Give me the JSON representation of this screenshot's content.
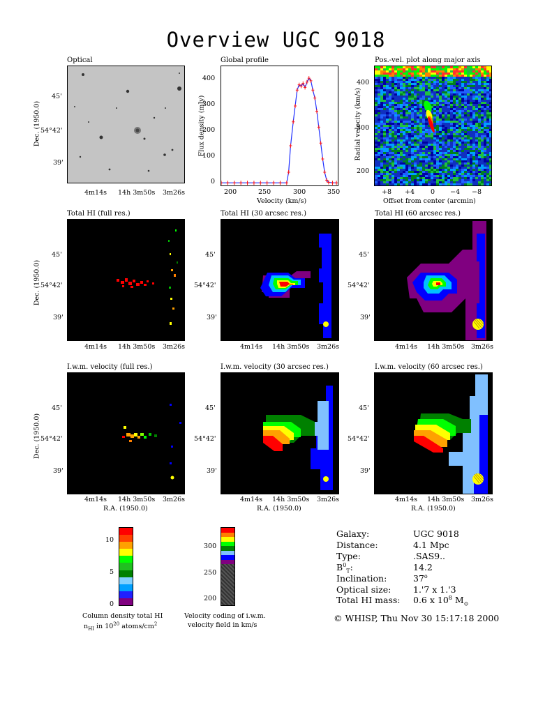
{
  "title": "Overview UGC 9018",
  "panels": {
    "optical": "Optical",
    "global_profile": "Global profile",
    "pv_plot": "Pos.-vel. plot along major axis",
    "total_full": "Total HI (full res.)",
    "total_30": "Total HI (30 arcsec res.)",
    "total_60": "Total HI (60 arcsec res.)",
    "vel_full": "I.w.m. velocity (full res.)",
    "vel_30": "I.w.m. velocity (30 arcsec res.)",
    "vel_60": "I.w.m. velocity (60 arcsec res.)"
  },
  "axes": {
    "dec_label": "Dec. (1950.0)",
    "ra_label": "R.A. (1950.0)",
    "dec_ticks": [
      "45'",
      "54°42'",
      "39'"
    ],
    "ra_ticks": [
      "4m14s",
      "14h 3m50s",
      "3m26s"
    ],
    "flux_label": "Flux density (mJy)",
    "vel_label": "Velocity (km/s)",
    "flux_ticks": [
      "400",
      "300",
      "200",
      "100",
      "0"
    ],
    "vel_ticks": [
      "200",
      "250",
      "300",
      "350"
    ],
    "radial_label": "Radial velocity (km/s)",
    "radial_ticks": [
      "400",
      "300",
      "200"
    ],
    "offset_label": "Offset from center (arcmin)",
    "offset_ticks": [
      "+8",
      "+4",
      "0",
      "−4",
      "−8"
    ]
  },
  "colorbars": {
    "density_ticks": [
      "10",
      "5",
      "0"
    ],
    "density_caption_1": "Column density total HI",
    "density_caption_2": "nHI in 1020 atoms/cm2",
    "velocity_ticks": [
      "300",
      "250",
      "200"
    ],
    "velocity_caption_1": "Velocity coding of i.w.m.",
    "velocity_caption_2": "velocity field in km/s",
    "density_colors": [
      "#800080",
      "#2020ff",
      "#00a0ff",
      "#80d0ff",
      "#008000",
      "#20c020",
      "#00ff00",
      "#ffff00",
      "#ffa000",
      "#ff4000",
      "#ff0000"
    ],
    "velocity_colors": [
      "#ff0000",
      "#ff8000",
      "#ffff00",
      "#00ff00",
      "#008000",
      "#80c0ff",
      "#0000ff",
      "#800080"
    ]
  },
  "info": {
    "galaxy_label": "Galaxy:",
    "galaxy": "UGC 9018",
    "distance_label": "Distance:",
    "distance": "4.1 Mpc",
    "type_label": "Type:",
    "type": ".SAS9..",
    "bt_label": "B0T:",
    "bt": "14.2",
    "incl_label": "Inclination:",
    "incl": "37o",
    "optsize_label": "Optical size:",
    "optsize": "1.'7 x 1.'3",
    "himass_label": "Total HI mass:",
    "himass": "0.6 x 108 M⊙"
  },
  "footer": "© WHISP, Thu Nov 30 15:17:18 2000",
  "chart_data": {
    "type": "line",
    "title": "Global profile",
    "xlabel": "Velocity (km/s)",
    "ylabel": "Flux density (mJy)",
    "xlim": [
      180,
      358
    ],
    "ylim": [
      -10,
      440
    ],
    "x": [
      180,
      190,
      200,
      210,
      220,
      230,
      240,
      250,
      260,
      270,
      280,
      283,
      286,
      290,
      293,
      296,
      299,
      302,
      305,
      308,
      311,
      314,
      317,
      320,
      323,
      326,
      329,
      332,
      335,
      338,
      341,
      344,
      350,
      356
    ],
    "values": [
      0,
      0,
      0,
      0,
      0,
      0,
      0,
      0,
      0,
      0,
      0,
      40,
      140,
      230,
      290,
      350,
      370,
      365,
      375,
      360,
      380,
      395,
      385,
      350,
      320,
      270,
      210,
      150,
      90,
      40,
      10,
      2,
      0,
      0
    ]
  }
}
